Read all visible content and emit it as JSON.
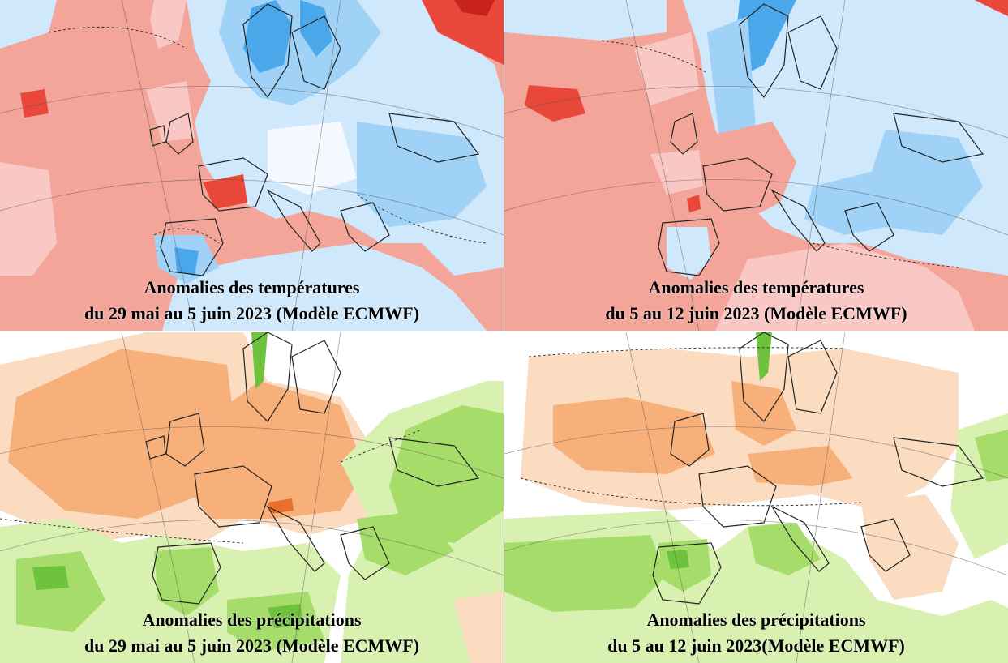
{
  "panels": {
    "temp_1": {
      "caption_line1": "Anomalies des températures",
      "caption_line2": "du 29 mai au 5 juin 2023 (Modèle ECMWF)"
    },
    "temp_2": {
      "caption_line1": "Anomalies des températures",
      "caption_line2": "du 5 au 12 juin 2023 (Modèle ECMWF)"
    },
    "precip_1": {
      "caption_line1": "Anomalies des précipitations",
      "caption_line2": "du 29 mai au 5 juin 2023 (Modèle ECMWF)"
    },
    "precip_2": {
      "caption_line1": "Anomalies des précipitations",
      "caption_line2": "du 5 au 12 juin 2023(Modèle ECMWF)"
    }
  },
  "colors": {
    "warm_light": "#f9c8c4",
    "warm_mid": "#f3a59a",
    "warm_strong": "#e8473a",
    "warm_extreme": "#c8231a",
    "cold_light": "#cfe8fb",
    "cold_mid": "#9fd2f6",
    "cold_strong": "#4aa8ea",
    "dry_light": "#fbdcc0",
    "dry_mid": "#f7b07a",
    "wet_light": "#d8f0b0",
    "wet_mid": "#a6dc6a",
    "wet_strong": "#6fc23d",
    "coastline": "#222222"
  }
}
